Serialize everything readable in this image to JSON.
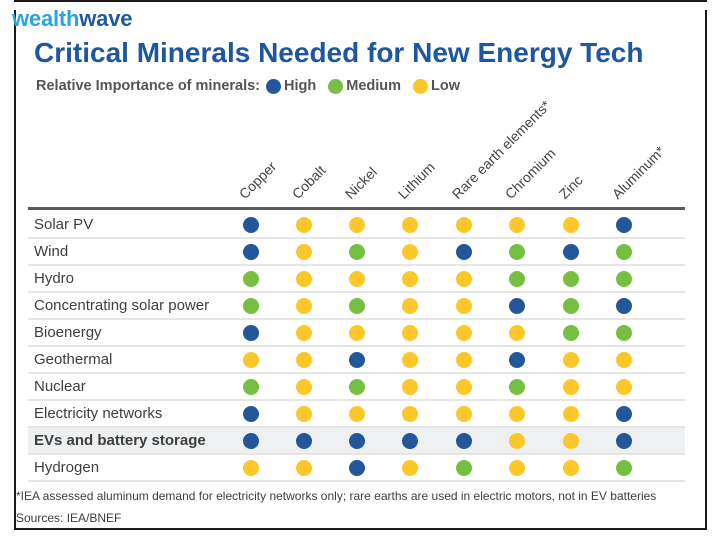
{
  "brand": {
    "part1": "wealth",
    "part2": "wave"
  },
  "title": "Critical Minerals Needed for New Energy Tech",
  "legend": {
    "label": "Relative Importance of minerals:",
    "items": [
      {
        "key": "H",
        "label": "High",
        "color": "#23579a"
      },
      {
        "key": "M",
        "label": "Medium",
        "color": "#76bf43"
      },
      {
        "key": "L",
        "label": "Low",
        "color": "#fdc62a"
      }
    ]
  },
  "footnote": "*IEA assessed aluminum demand for electricity networks only; rare earths are used in electric motors, not in EV batteries",
  "sources": "Sources: IEA/BNEF",
  "chart_data": {
    "type": "table",
    "title": "Critical Minerals Needed for New Energy Tech",
    "value_scale": {
      "H": "High",
      "M": "Medium",
      "L": "Low"
    },
    "columns": [
      "Copper",
      "Cobalt",
      "Nickel",
      "Lithium",
      "Rare earth elements*",
      "Chromium",
      "Zinc",
      "Aluminum*"
    ],
    "rows": [
      {
        "label": "Solar PV",
        "highlight": false,
        "values": [
          "H",
          "L",
          "L",
          "L",
          "L",
          "L",
          "L",
          "H"
        ]
      },
      {
        "label": "Wind",
        "highlight": false,
        "values": [
          "H",
          "L",
          "M",
          "L",
          "H",
          "M",
          "H",
          "M"
        ]
      },
      {
        "label": "Hydro",
        "highlight": false,
        "values": [
          "M",
          "L",
          "L",
          "L",
          "L",
          "M",
          "M",
          "M"
        ]
      },
      {
        "label": "Concentrating solar power",
        "highlight": false,
        "values": [
          "M",
          "L",
          "M",
          "L",
          "L",
          "H",
          "M",
          "H"
        ]
      },
      {
        "label": "Bioenergy",
        "highlight": false,
        "values": [
          "H",
          "L",
          "L",
          "L",
          "L",
          "L",
          "M",
          "M"
        ]
      },
      {
        "label": "Geothermal",
        "highlight": false,
        "values": [
          "L",
          "L",
          "H",
          "L",
          "L",
          "H",
          "L",
          "L"
        ]
      },
      {
        "label": "Nuclear",
        "highlight": false,
        "values": [
          "M",
          "L",
          "M",
          "L",
          "L",
          "M",
          "L",
          "L"
        ]
      },
      {
        "label": "Electricity networks",
        "highlight": false,
        "values": [
          "H",
          "L",
          "L",
          "L",
          "L",
          "L",
          "L",
          "H"
        ]
      },
      {
        "label": "EVs and battery storage",
        "highlight": true,
        "values": [
          "H",
          "H",
          "H",
          "H",
          "H",
          "L",
          "L",
          "H"
        ]
      },
      {
        "label": "Hydrogen",
        "highlight": false,
        "values": [
          "L",
          "L",
          "H",
          "L",
          "M",
          "L",
          "L",
          "M"
        ]
      }
    ]
  }
}
